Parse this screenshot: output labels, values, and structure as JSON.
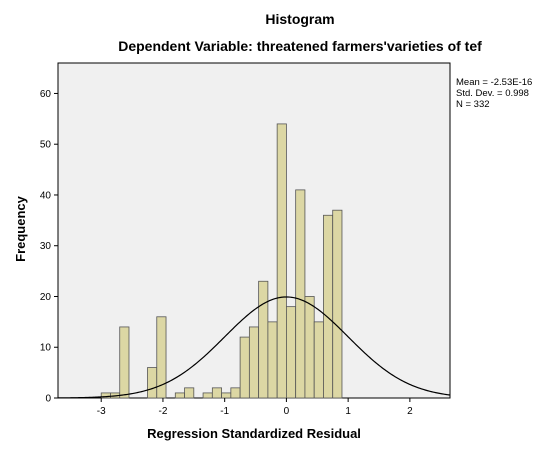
{
  "chart_data": {
    "type": "bar",
    "title": "Histogram",
    "subtitle": "Dependent Variable: threatened farmers'varieties of tef",
    "xlabel": "Regression Standardized Residual",
    "ylabel": "Frequency",
    "xlim": [
      -3.7,
      2.65
    ],
    "ylim": [
      0,
      66
    ],
    "x_ticks": [
      -3,
      -2,
      -1,
      0,
      1,
      2
    ],
    "y_ticks": [
      0,
      10,
      20,
      30,
      40,
      50,
      60
    ],
    "bin_width": 0.15,
    "bins": [
      {
        "x0": -3.0,
        "value": 1
      },
      {
        "x0": -2.85,
        "value": 1
      },
      {
        "x0": -2.7,
        "value": 14
      },
      {
        "x0": -2.55,
        "value": 0
      },
      {
        "x0": -2.4,
        "value": 0
      },
      {
        "x0": -2.25,
        "value": 6
      },
      {
        "x0": -2.1,
        "value": 16
      },
      {
        "x0": -1.95,
        "value": 0
      },
      {
        "x0": -1.8,
        "value": 1
      },
      {
        "x0": -1.65,
        "value": 2
      },
      {
        "x0": -1.5,
        "value": 0
      },
      {
        "x0": -1.35,
        "value": 1
      },
      {
        "x0": -1.2,
        "value": 2
      },
      {
        "x0": -1.05,
        "value": 1
      },
      {
        "x0": -0.9,
        "value": 2
      },
      {
        "x0": -0.75,
        "value": 12
      },
      {
        "x0": -0.6,
        "value": 14
      },
      {
        "x0": -0.45,
        "value": 23
      },
      {
        "x0": -0.3,
        "value": 15
      },
      {
        "x0": -0.15,
        "value": 54
      },
      {
        "x0": 0.0,
        "value": 18
      },
      {
        "x0": 0.15,
        "value": 41
      },
      {
        "x0": 0.3,
        "value": 20
      },
      {
        "x0": 0.45,
        "value": 15
      },
      {
        "x0": 0.6,
        "value": 36
      },
      {
        "x0": 0.75,
        "value": 37
      }
    ],
    "normal_curve": {
      "mean": -2.53e-16,
      "sd": 0.998,
      "n": 332
    },
    "bar_color": "#DCD7A4",
    "bar_edge_color": "#555555",
    "plot_background": "#F0F0F0",
    "curve_color": "#000000",
    "grid": false,
    "legend": "none",
    "stats": {
      "mean_text": "Mean = -2.53E-16",
      "sd_text": "Std. Dev. = 0.998",
      "n_text": "N = 332"
    }
  }
}
